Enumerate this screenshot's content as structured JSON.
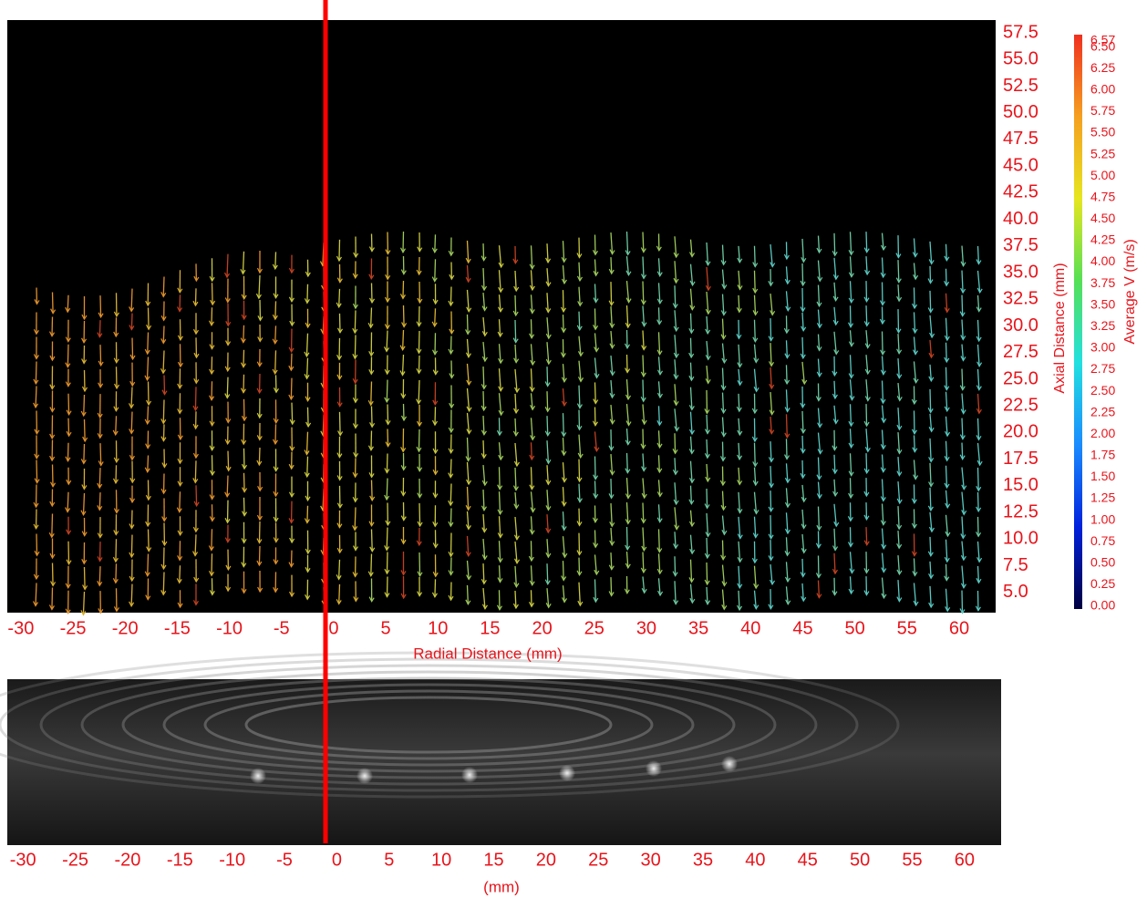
{
  "chart_data": [
    {
      "type": "quiver",
      "xlabel": "Radial Distance (mm)",
      "ylabel": "Axial Distance (mm)",
      "xlim": [
        -31.3,
        63.5
      ],
      "ylim": [
        3.1,
        58.7
      ],
      "xticks": [
        -30,
        -25,
        -20,
        -15,
        -10,
        -5,
        0,
        5,
        10,
        15,
        20,
        25,
        30,
        35,
        40,
        45,
        50,
        55,
        60
      ],
      "yticks": [
        57.5,
        {
          "value": 55,
          "label": "55.0"
        },
        52.5,
        {
          "value": 50,
          "label": "50.0"
        },
        47.5,
        {
          "value": 45,
          "label": "45.0"
        },
        42.5,
        {
          "value": 40,
          "label": "40.0"
        },
        37.5,
        {
          "value": 35,
          "label": "35.0"
        },
        32.5,
        {
          "value": 30,
          "label": "30.0"
        },
        27.5,
        {
          "value": 25,
          "label": "25.0"
        },
        22.5,
        {
          "value": 20,
          "label": "20.0"
        },
        17.5,
        {
          "value": 15,
          "label": "15.0"
        },
        12.5,
        {
          "value": 10,
          "label": "10.0"
        },
        7.5,
        {
          "value": 5,
          "label": "5.0"
        }
      ],
      "axis_color": "#e8141b",
      "colorbar": {
        "label": "Average V  (m/s)",
        "lim": [
          0,
          6.57
        ],
        "colors": [
          "#000040",
          "#0022dd",
          "#1a8cff",
          "#22e0e0",
          "#55e055",
          "#e6e620",
          "#f5a020",
          "#f03020"
        ],
        "ticks": [
          6.57,
          {
            "value": 6.5,
            "label": "6.50"
          },
          6.25,
          {
            "value": 6,
            "label": "6.00"
          },
          5.75,
          {
            "value": 5.5,
            "label": "5.50"
          },
          5.25,
          {
            "value": 5,
            "label": "5.00"
          },
          4.75,
          {
            "value": 4.5,
            "label": "4.50"
          },
          4.25,
          {
            "value": 4,
            "label": "4.00"
          },
          3.75,
          {
            "value": 3.5,
            "label": "3.50"
          },
          3.25,
          {
            "value": 3,
            "label": "3.00"
          },
          2.75,
          {
            "value": 2.5,
            "label": "2.50"
          },
          2.25,
          {
            "value": 2,
            "label": "2.00"
          },
          1.75,
          {
            "value": 1.5,
            "label": "1.50"
          },
          1.25,
          {
            "value": 1,
            "label": "1.00"
          },
          0.75,
          {
            "value": 0.5,
            "label": "0.50"
          },
          0.25,
          {
            "value": 0,
            "label": "0.00"
          }
        ]
      }
    },
    {
      "type": "image",
      "xlabel": "(mm)",
      "xlim": [
        -31.5,
        63.5
      ],
      "xticks": [
        -30,
        -25,
        -20,
        -15,
        -10,
        -5,
        0,
        5,
        10,
        15,
        20,
        25,
        30,
        35,
        40,
        45,
        50,
        55,
        60
      ],
      "axis_color": "#e8141b"
    }
  ]
}
